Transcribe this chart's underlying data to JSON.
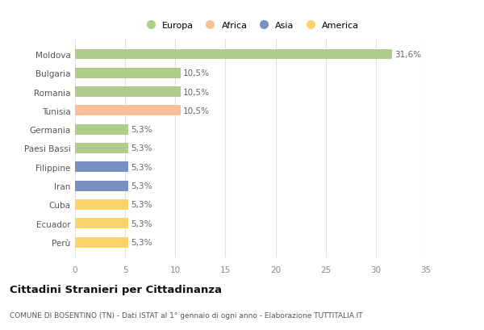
{
  "categories": [
    "Perù",
    "Ecuador",
    "Cuba",
    "Iran",
    "Filippine",
    "Paesi Bassi",
    "Germania",
    "Tunisia",
    "Romania",
    "Bulgaria",
    "Moldova"
  ],
  "values": [
    5.3,
    5.3,
    5.3,
    5.3,
    5.3,
    5.3,
    5.3,
    10.5,
    10.5,
    10.5,
    31.6
  ],
  "colors": [
    "#f9d46a",
    "#f9d46a",
    "#f9d46a",
    "#7a90c0",
    "#7a90c0",
    "#b0cc8a",
    "#b0cc8a",
    "#f7c09a",
    "#b0cc8a",
    "#b0cc8a",
    "#b0cc8a"
  ],
  "labels": [
    "5,3%",
    "5,3%",
    "5,3%",
    "5,3%",
    "5,3%",
    "5,3%",
    "5,3%",
    "10,5%",
    "10,5%",
    "10,5%",
    "31,6%"
  ],
  "legend_labels": [
    "Europa",
    "Africa",
    "Asia",
    "America"
  ],
  "legend_colors": [
    "#b0cc8a",
    "#f7c09a",
    "#7a90c0",
    "#f9d46a"
  ],
  "title": "Cittadini Stranieri per Cittadinanza",
  "subtitle": "COMUNE DI BOSENTINO (TN) - Dati ISTAT al 1° gennaio di ogni anno - Elaborazione TUTTITALIA.IT",
  "xlim": [
    0,
    35
  ],
  "xticks": [
    0,
    5,
    10,
    15,
    20,
    25,
    30,
    35
  ],
  "bg_color": "#ffffff",
  "grid_color": "#e0e0e0"
}
